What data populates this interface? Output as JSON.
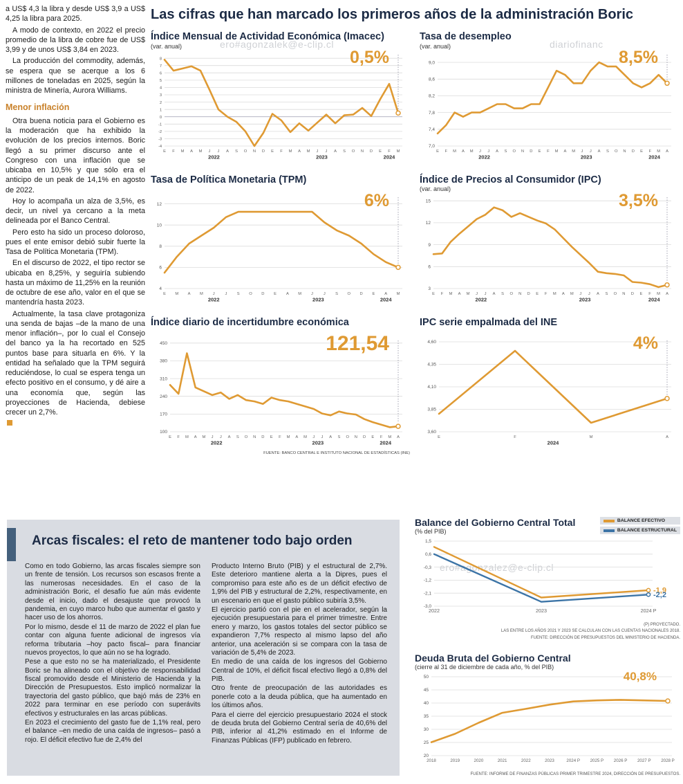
{
  "main_title": "Las cifras que han marcado los primeros años de la administración Boric",
  "source_note_top": "FUENTE: BANCO CENTRAL E INSTITUTO NACIONAL DE ESTADÍSTICAS (INE)",
  "colors": {
    "accent_orange": "#DF9A33",
    "navy": "#1C2B45",
    "line_blue": "#3C74A6",
    "box_gray": "#D9DCE2"
  },
  "watermarks": {
    "top_left": "ero#agonzalek@e-clip.cl",
    "top_right": "diariofinanc",
    "bottom": "ero#agonzalez@e-clip.cl"
  },
  "left_article": {
    "paragraphs_before": [
      "a US$ 4,3 la libra y desde US$ 3,9 a US$ 4,25 la libra para 2025.",
      "A modo de contexto, en 2022 el precio promedio de la libra de cobre fue de US$ 3,99 y de unos US$ 3,84 en 2023.",
      "La producción del commodity, además, se espera que se acerque a los 6 millones de toneladas en 2025, según la ministra de Minería, Aurora Williams."
    ],
    "section_heading": "Menor inflación",
    "paragraphs_after": [
      "Otra buena noticia para el Gobierno es la moderación que ha exhibido la evolución de los precios internos. Boric llegó a su primer discurso ante el Congreso con una inflación que se ubicaba en 10,5% y que sólo era el anticipo de un peak de 14,1% en agosto de 2022.",
      "Hoy lo acompaña un alza de 3,5%, es decir, un nivel ya cercano a la meta delineada por el Banco Central.",
      "Pero esto ha sido un proceso doloroso, pues el ente emisor debió subir fuerte la Tasa de Política Monetaria (TPM).",
      "En el discurso de 2022, el tipo rector se ubicaba en 8,25%, y seguiría subiendo hasta un máximo de 11,25% en la reunión de octubre de ese año, valor en el que se mantendría hasta 2023.",
      "Actualmente, la tasa clave protagoniza una senda de bajas –de la mano de una menor inflación–, por lo cual el Consejo del banco ya la ha recortado en 525 puntos base para situarla en 6%. Y la entidad ha señalado que la TPM seguirá reduciéndose, lo cual se espera tenga un efecto positivo en el consumo, y dé aire a una economía que, según las proyecciones de Hacienda, debiese crecer un 2,7%."
    ]
  },
  "arcas": {
    "title": "Arcas fiscales: el reto de mantener todo bajo orden",
    "col1": [
      "Como en todo Gobierno, las arcas fiscales siempre son un frente de tensión. Los recursos son escasos frente a las numerosas necesidades. En el caso de la administración Boric, el desafío fue aún más evidente desde el inicio, dado el desajuste que provocó la pandemia, en cuyo marco hubo que aumentar el gasto y hacer uso de los ahorros.",
      "Por lo mismo, desde el 11 de marzo de 2022 el plan fue contar con alguna fuente adicional de ingresos vía reforma tributaria –hoy pacto fiscal– para financiar nuevos proyectos, lo que aún no se ha logrado.",
      "Pese a que esto no se ha materializado, el Presidente Boric se ha alineado con el objetivo de responsabilidad fiscal promovido desde el Ministerio de Hacienda y la Dirección de Presupuestos. Esto implicó normalizar la trayectoria del gasto público, que bajó más de 23% en 2022 para terminar en ese período con superávits efectivos y estructurales en las arcas públicas.",
      "En 2023 el crecimiento del gasto fue de 1,1% real, pero el balance –en medio de una caída de ingresos– pasó a rojo. El déficit efectivo fue de 2,4% del"
    ],
    "col2": [
      "Producto Interno Bruto (PIB) y el estructural de 2,7%. Este deterioro mantiene alerta a la Dipres, pues el compromiso para este año es de un déficit efectivo de 1,9% del PIB y estructural de 2,2%, respectivamente, en un escenario en que el gasto público subiría 3,5%.",
      "El ejercicio partió con el pie en el acelerador, según la ejecución presupuestaria para el primer trimestre. Entre enero y marzo, los gastos totales del sector público se expandieron 7,7% respecto al mismo lapso del año anterior, una aceleración si se compara con la tasa de variación de 5,4% de 2023.",
      "En medio de una caída de los ingresos del Gobierno Central de 10%, el déficit fiscal efectivo llegó a 0,8% del PIB.",
      "Otro frente de preocupación de las autoridades es ponerle coto a la deuda pública, que ha aumentado en los últimos años.",
      "Para el cierre del ejercicio presupuestario 2024 el stock de deuda bruta del Gobierno Central sería de 40,6% del PIB, inferior al 41,2% estimado en el Informe de Finanzas Públicas (IFP) publicado en febrero."
    ]
  },
  "chart_data": [
    {
      "id": "imacec",
      "type": "line",
      "title": "Índice Mensual de Actividad Económica (Imacec)",
      "subtitle": "(var. anual)",
      "big_label": "0,5%",
      "ylim": [
        -4,
        8.3
      ],
      "padL": 20,
      "ytf": 5.5,
      "end_line": true,
      "y_ticks": [
        {
          "v": 8,
          "l": "8"
        },
        {
          "v": 7,
          "l": "7"
        },
        {
          "v": 6,
          "l": "6"
        },
        {
          "v": 5,
          "l": "5"
        },
        {
          "v": 4,
          "l": "4"
        },
        {
          "v": 3,
          "l": "3"
        },
        {
          "v": 2,
          "l": "2"
        },
        {
          "v": 1,
          "l": "1"
        },
        {
          "v": 0,
          "l": "0"
        },
        {
          "v": -1,
          "l": "-1"
        },
        {
          "v": -2,
          "l": "-2"
        },
        {
          "v": -3,
          "l": "-3"
        },
        {
          "v": -4,
          "l": "-4"
        }
      ],
      "x_labels": [
        "E",
        "F",
        "M",
        "A",
        "M",
        "J",
        "J",
        "A",
        "S",
        "O",
        "N",
        "D",
        "E",
        "F",
        "M",
        "A",
        "M",
        "J",
        "J",
        "A",
        "S",
        "O",
        "N",
        "D",
        "E",
        "F",
        "M"
      ],
      "year_labels": [
        {
          "l": "2022",
          "i": 5.5
        },
        {
          "l": "2023",
          "i": 17.5
        },
        {
          "l": "2024",
          "i": 25
        }
      ],
      "series": [
        {
          "name": "Imacec",
          "color": "#DF9A33",
          "values": [
            7.8,
            6.3,
            6.6,
            6.9,
            6.3,
            3.7,
            1.0,
            0.0,
            -0.7,
            -2.0,
            -4.0,
            -2.2,
            0.4,
            -0.5,
            -2.1,
            -0.9,
            -1.9,
            -0.8,
            0.3,
            -0.9,
            0.2,
            0.3,
            1.2,
            0.1,
            2.4,
            4.5,
            0.5
          ]
        }
      ]
    },
    {
      "id": "desempleo",
      "type": "line",
      "title": "Tasa de desempleo",
      "subtitle": "(var. anual)",
      "big_label": "8,5%",
      "ylim": [
        7.0,
        9.15
      ],
      "padL": 26,
      "end_line": true,
      "y_ticks": [
        {
          "v": 9.0,
          "l": "9,0"
        },
        {
          "v": 8.6,
          "l": "8,6"
        },
        {
          "v": 8.2,
          "l": "8,2"
        },
        {
          "v": 7.8,
          "l": "7,8"
        },
        {
          "v": 7.4,
          "l": "7,4"
        },
        {
          "v": 7.0,
          "l": "7,0"
        }
      ],
      "x_labels": [
        "E",
        "F",
        "M",
        "A",
        "M",
        "J",
        "J",
        "A",
        "S",
        "O",
        "N",
        "D",
        "E",
        "F",
        "M",
        "A",
        "M",
        "J",
        "J",
        "A",
        "S",
        "O",
        "N",
        "D",
        "E",
        "F",
        "M",
        "A"
      ],
      "year_labels": [
        {
          "l": "2022",
          "i": 5.5
        },
        {
          "l": "2023",
          "i": 17.5
        },
        {
          "l": "2024",
          "i": 25.5
        }
      ],
      "series": [
        {
          "name": "Tasa de desempleo",
          "color": "#DF9A33",
          "values": [
            7.3,
            7.5,
            7.8,
            7.7,
            7.8,
            7.8,
            7.9,
            8.0,
            8.0,
            7.9,
            7.9,
            8.0,
            8.0,
            8.4,
            8.8,
            8.7,
            8.5,
            8.5,
            8.8,
            9.0,
            8.9,
            8.9,
            8.7,
            8.5,
            8.4,
            8.5,
            8.7,
            8.5
          ]
        }
      ]
    },
    {
      "id": "tpm",
      "type": "line",
      "title": "Tasa de Política Monetaria (TPM)",
      "subtitle": "",
      "big_label": "6%",
      "ylim": [
        4,
        12.5
      ],
      "padL": 20,
      "end_line": true,
      "y_ticks": [
        {
          "v": 12,
          "l": "12"
        },
        {
          "v": 10,
          "l": "10"
        },
        {
          "v": 8,
          "l": "8"
        },
        {
          "v": 6,
          "l": "6"
        },
        {
          "v": 4,
          "l": "4"
        }
      ],
      "x_labels": [
        "E",
        "M",
        "A",
        "M",
        "J",
        "J",
        "S",
        "O",
        "D",
        "E",
        "A",
        "M",
        "J",
        "J",
        "S",
        "O",
        "D",
        "E",
        "A",
        "M"
      ],
      "year_labels": [
        {
          "l": "2022",
          "i": 4
        },
        {
          "l": "2023",
          "i": 12.5
        },
        {
          "l": "2024",
          "i": 18
        }
      ],
      "series": [
        {
          "name": "TPM",
          "color": "#DF9A33",
          "values": [
            5.5,
            7.0,
            8.25,
            9.0,
            9.75,
            10.75,
            11.25,
            11.25,
            11.25,
            11.25,
            11.25,
            11.25,
            11.25,
            10.25,
            9.5,
            9.0,
            8.25,
            7.25,
            6.5,
            6.0
          ]
        }
      ]
    },
    {
      "id": "ipc",
      "type": "line",
      "title": "Índice de Precios al Consumidor (IPC)",
      "subtitle": "(var. anual)",
      "big_label": "3,5%",
      "ylim": [
        3,
        15.3
      ],
      "padL": 20,
      "end_line": true,
      "y_ticks": [
        {
          "v": 15,
          "l": "15"
        },
        {
          "v": 12,
          "l": "12"
        },
        {
          "v": 9,
          "l": "9"
        },
        {
          "v": 6,
          "l": "6"
        },
        {
          "v": 3,
          "l": "3"
        }
      ],
      "x_labels": [
        "E",
        "F",
        "M",
        "A",
        "M",
        "J",
        "J",
        "A",
        "S",
        "O",
        "N",
        "D",
        "E",
        "F",
        "M",
        "A",
        "M",
        "J",
        "J",
        "A",
        "S",
        "O",
        "N",
        "D",
        "E",
        "F",
        "M",
        "A"
      ],
      "year_labels": [
        {
          "l": "2022",
          "i": 5.5
        },
        {
          "l": "2023",
          "i": 17.5
        },
        {
          "l": "2024",
          "i": 25.5
        }
      ],
      "series": [
        {
          "name": "IPC",
          "color": "#DF9A33",
          "values": [
            7.7,
            7.8,
            9.4,
            10.5,
            11.5,
            12.5,
            13.1,
            14.1,
            13.7,
            12.8,
            13.3,
            12.8,
            12.3,
            11.9,
            11.1,
            9.9,
            8.7,
            7.6,
            6.5,
            5.3,
            5.1,
            5.0,
            4.8,
            3.9,
            3.8,
            3.6,
            3.2,
            3.5
          ]
        }
      ]
    },
    {
      "id": "incertidumbre",
      "type": "line",
      "title": "Índice diario de incertidumbre económica",
      "subtitle": "",
      "big_label": "121,54",
      "ylim": [
        100,
        455
      ],
      "padL": 28,
      "end_line": true,
      "y_ticks": [
        {
          "v": 450,
          "l": "450"
        },
        {
          "v": 380,
          "l": "380"
        },
        {
          "v": 310,
          "l": "310"
        },
        {
          "v": 240,
          "l": "240"
        },
        {
          "v": 170,
          "l": "170"
        },
        {
          "v": 100,
          "l": "100"
        }
      ],
      "x_labels": [
        "E",
        "F",
        "M",
        "A",
        "M",
        "J",
        "J",
        "A",
        "S",
        "O",
        "N",
        "D",
        "E",
        "F",
        "M",
        "A",
        "M",
        "J",
        "J",
        "A",
        "S",
        "O",
        "N",
        "D",
        "E",
        "F",
        "M",
        "A"
      ],
      "year_labels": [
        {
          "l": "2022",
          "i": 5.5
        },
        {
          "l": "2023",
          "i": 17.5
        },
        {
          "l": "2024",
          "i": 25.5
        }
      ],
      "series": [
        {
          "name": "Incertidumbre económica",
          "color": "#DF9A33",
          "values": [
            285,
            250,
            410,
            275,
            260,
            245,
            255,
            230,
            245,
            225,
            220,
            210,
            235,
            225,
            220,
            210,
            200,
            190,
            172,
            165,
            180,
            172,
            168,
            150,
            138,
            128,
            118,
            121.54
          ]
        }
      ]
    },
    {
      "id": "ipc_ine",
      "type": "line",
      "title": "IPC serie empalmada del INE",
      "subtitle": "",
      "big_label": "4%",
      "ylim": [
        3.6,
        4.6
      ],
      "padL": 28,
      "end_line": true,
      "y_ticks": [
        {
          "v": 4.6,
          "l": "4,60"
        },
        {
          "v": 4.35,
          "l": "4,35"
        },
        {
          "v": 4.1,
          "l": "4,10"
        },
        {
          "v": 3.85,
          "l": "3,85"
        },
        {
          "v": 3.6,
          "l": "3,60"
        }
      ],
      "x_labels": [
        "E",
        "F",
        "M",
        "A"
      ],
      "year_labels": [
        {
          "l": "2024",
          "i": 1.5
        }
      ],
      "series": [
        {
          "name": "IPC serie empalmada",
          "color": "#DF9A33",
          "values": [
            3.8,
            4.5,
            3.7,
            3.97
          ]
        }
      ]
    },
    {
      "id": "balance",
      "type": "line",
      "title": "Balance del Gobierno Central Total",
      "subtitle": "(% del PIB)",
      "big_label": "",
      "ylim": [
        -3.0,
        1.5
      ],
      "padL": 28,
      "padR": 42,
      "padB": 16,
      "xlf": 7.2,
      "stroke": 2.4,
      "mr": 2.6,
      "y_ticks": [
        {
          "v": 1.5,
          "l": "1,5"
        },
        {
          "v": 0.6,
          "l": "0,6"
        },
        {
          "v": -0.3,
          "l": "-0,3"
        },
        {
          "v": -1.2,
          "l": "-1,2"
        },
        {
          "v": -2.1,
          "l": "-2,1"
        },
        {
          "v": -3.0,
          "l": "-3,0"
        }
      ],
      "x_labels": [
        "2022",
        "2023",
        "2024 P"
      ],
      "year_labels": [],
      "legend": [
        {
          "label": "BALANCE EFECTIVO",
          "color": "#DF9A33"
        },
        {
          "label": "BALANCE ESTRUCTURAL",
          "color": "#3C74A6"
        }
      ],
      "end_labels": [
        "-1,9",
        "-2,2"
      ],
      "series": [
        {
          "name": "Balance efectivo",
          "color": "#DF9A33",
          "values": [
            1.1,
            -2.4,
            -1.9
          ]
        },
        {
          "name": "Balance estructural",
          "color": "#3C74A6",
          "values": [
            0.6,
            -2.7,
            -2.2
          ]
        }
      ],
      "footnotes": [
        "(P) PROYECTADO.",
        "LAS ENTRE LOS AÑOS 2021 Y 2023 SE CALCULAN CON LAS CUENTAS NACIONALES 2018.",
        "FUENTE: DIRECCIÓN DE PRESUPUESTOS DEL MINISTERIO DE HACIENDA."
      ]
    },
    {
      "id": "deuda",
      "type": "line",
      "title": "Deuda Bruta del Gobierno Central",
      "subtitle": "(cierre al 31 de diciembre de cada año, % del PIB)",
      "big_label": "40,8%",
      "ylim": [
        20,
        50
      ],
      "padL": 24,
      "padB": 16,
      "xlf": 6.2,
      "y_ticks": [
        {
          "v": 50,
          "l": "50"
        },
        {
          "v": 45,
          "l": "45"
        },
        {
          "v": 40,
          "l": "40"
        },
        {
          "v": 35,
          "l": "35"
        },
        {
          "v": 30,
          "l": "30"
        },
        {
          "v": 25,
          "l": "25"
        },
        {
          "v": 20,
          "l": "20"
        }
      ],
      "x_labels": [
        "2018",
        "2019",
        "2020",
        "2021",
        "2022",
        "2023",
        "2024 P",
        "2025 P",
        "2026 P",
        "2027 P",
        "2028 P"
      ],
      "year_labels": [],
      "series": [
        {
          "name": "Deuda bruta",
          "color": "#DF9A33",
          "values": [
            25.1,
            28.3,
            32.5,
            36.3,
            37.8,
            39.4,
            40.6,
            41.0,
            41.2,
            41.0,
            40.8
          ]
        }
      ],
      "footnote": "FUENTE: INFORME DE FINANZAS PÚBLICAS PRIMER TRIMESTRE 2024, DIRECCIÓN DE PRESUPUESTOS."
    }
  ]
}
